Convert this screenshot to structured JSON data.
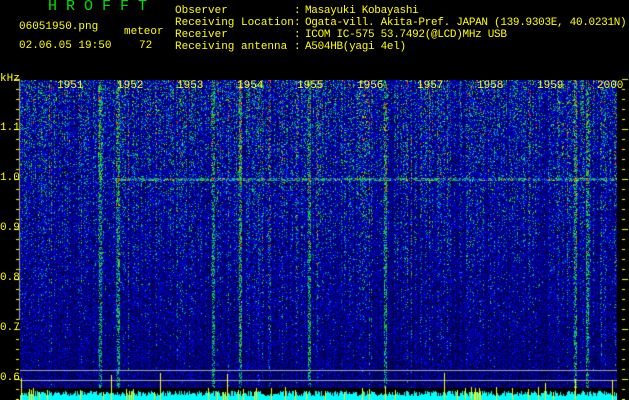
{
  "header": {
    "app_title": "H R O F F T",
    "filename": "06051950.png",
    "datetime": "02.06.05 19:50",
    "meteor_label": "meteor",
    "meteor_count": "72"
  },
  "info": [
    {
      "label": "Observer",
      "value": "Masayuki Kobayashi"
    },
    {
      "label": "Receiving Location",
      "value": "Ogata-vill. Akita-Pref. JAPAN (139.9303E, 40.0231N)"
    },
    {
      "label": "Receiver",
      "value": "ICOM IC-575 53.7492(@LCD)MHz USB"
    },
    {
      "label": "Receiving antenna",
      "value": "A504HB(yagi 4el)"
    }
  ],
  "spectrogram": {
    "y_unit": "kHz",
    "y_ticks": [
      "1.1",
      "1.0",
      "0.9",
      "0.8",
      "0.7",
      "0.6"
    ],
    "time_labels": [
      "1951",
      "1952",
      "1953",
      "1954",
      "1955",
      "1956",
      "1957",
      "1958",
      "1959",
      "2000"
    ],
    "colors": {
      "text": "#ffff00",
      "title": "#00e000",
      "count_bars": "#00ffff",
      "meteor_bars": "#ffff00",
      "reference_line": "#a0a0a0"
    }
  }
}
